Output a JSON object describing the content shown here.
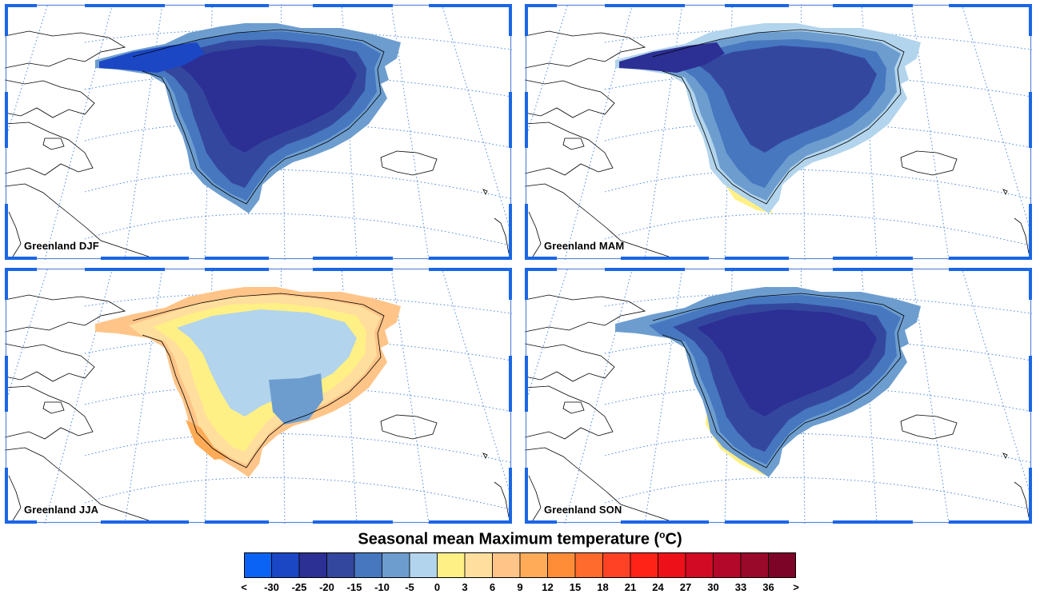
{
  "panels": [
    {
      "label": "Greenland DJF",
      "season": "DJF"
    },
    {
      "label": "Greenland MAM",
      "season": "MAM"
    },
    {
      "label": "Greenland JJA",
      "season": "JJA"
    },
    {
      "label": "Greenland SON",
      "season": "SON"
    }
  ],
  "legend": {
    "title_main": "Seasonal mean Maximum temperature (",
    "title_sup": "o",
    "title_end": "C)",
    "tick_labels": [
      "<",
      "-30",
      "-25",
      "-20",
      "-15",
      "-10",
      "-5",
      "0",
      "3",
      "6",
      "9",
      "12",
      "15",
      "18",
      "21",
      "24",
      "27",
      "30",
      "33",
      "36",
      ">"
    ],
    "colors": [
      "#0b63f5",
      "#1b47c4",
      "#2c2f93",
      "#34479e",
      "#4677bf",
      "#6d9dcf",
      "#b2d4ec",
      "#fff085",
      "#ffde9e",
      "#ffc488",
      "#ffab57",
      "#ff8d38",
      "#ff6a2d",
      "#ff4226",
      "#ff2317",
      "#ee1018",
      "#d30a23",
      "#b4082a",
      "#990a2a",
      "#7c0427"
    ]
  },
  "colors": {
    "frame": "#1a66e6",
    "grid": "#3a7be0",
    "coast": "#000000"
  }
}
